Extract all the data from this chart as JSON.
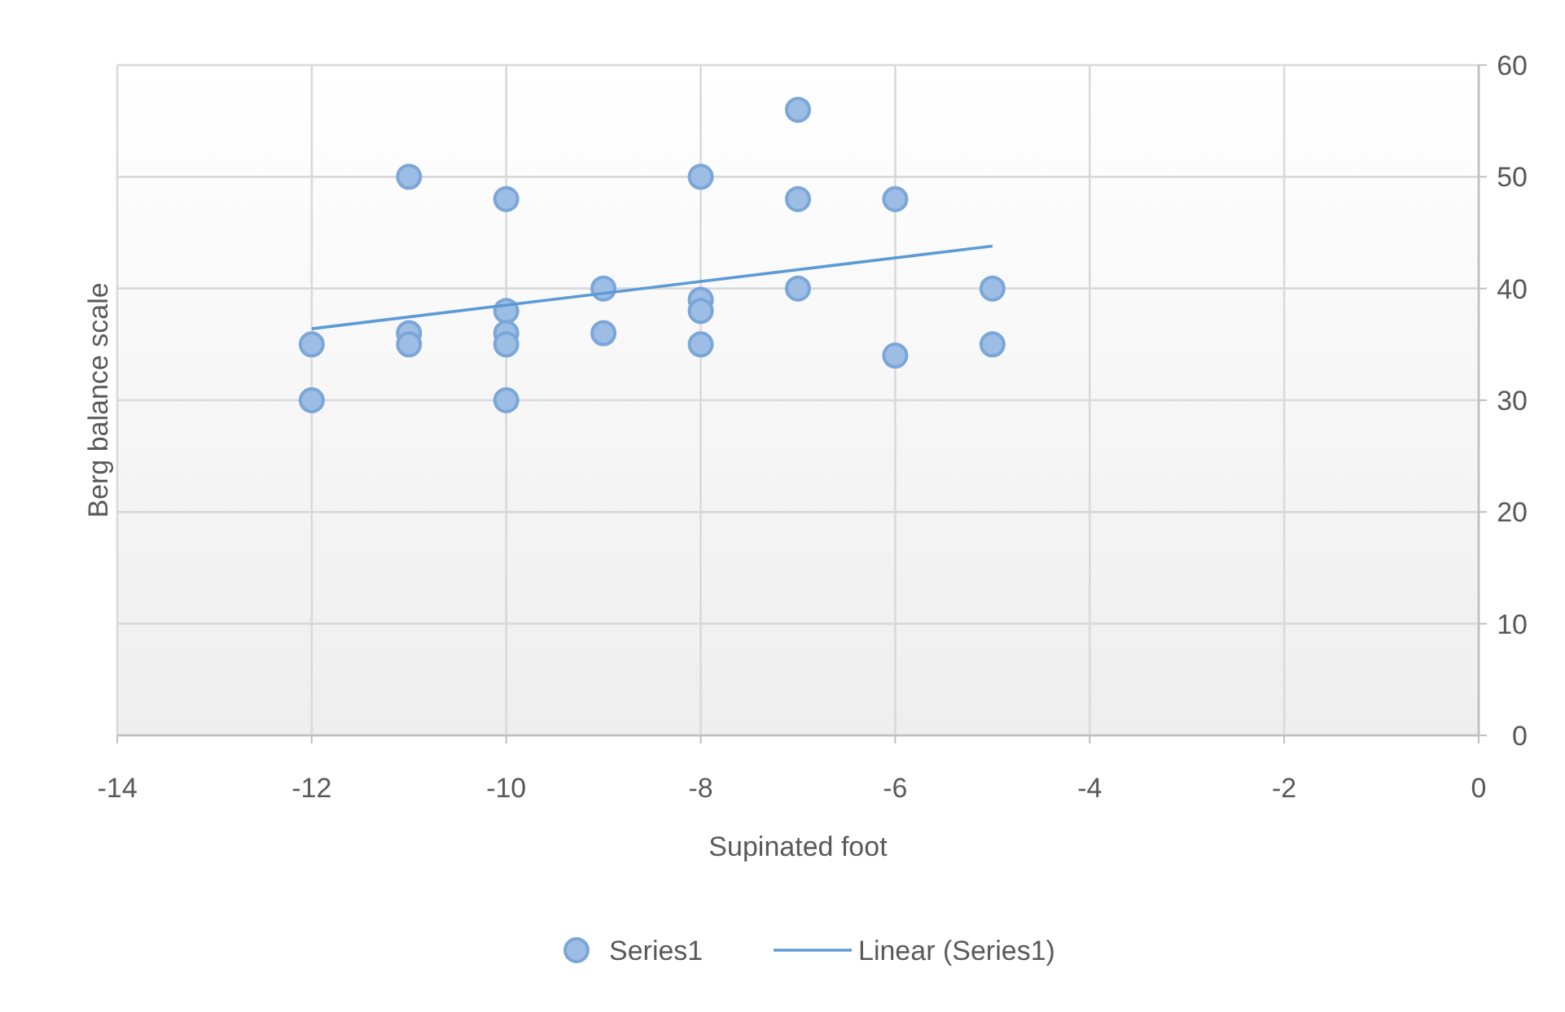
{
  "chart_data": {
    "type": "scatter",
    "xlabel": "Supinated foot",
    "ylabel": "Berg balance scale",
    "xlim": [
      -14,
      0
    ],
    "xticks": [
      -14,
      -12,
      -10,
      -8,
      -6,
      -4,
      -2,
      0
    ],
    "ylim": [
      0,
      60
    ],
    "yticks": [
      0,
      10,
      20,
      30,
      40,
      50,
      60
    ],
    "grid": true,
    "legend": "bottom",
    "marker": "circle",
    "series": [
      {
        "name": "Series1",
        "color": "#7aa6d8",
        "x": [
          -12,
          -12,
          -11,
          -11,
          -11,
          -10,
          -10,
          -10,
          -10,
          -10,
          -9,
          -9,
          -8,
          -8,
          -8,
          -8,
          -7,
          -7,
          -7,
          -6,
          -6,
          -5,
          -5
        ],
        "values": [
          35,
          30,
          50,
          36,
          35,
          48,
          38,
          36,
          35,
          30,
          40,
          36,
          50,
          39,
          38,
          35,
          56,
          48,
          40,
          48,
          34,
          40,
          35
        ]
      },
      {
        "name": "Linear (Series1)",
        "type": "line",
        "color": "#5b9bd5",
        "marker": "none",
        "x": [
          -12,
          -5
        ],
        "values": [
          36.4,
          43.8
        ]
      }
    ]
  }
}
